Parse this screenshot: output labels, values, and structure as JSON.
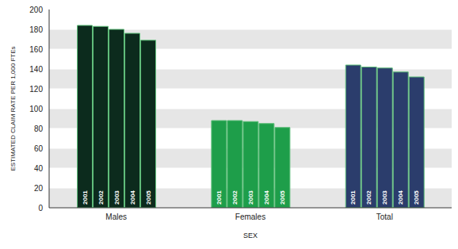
{
  "chart_data": {
    "type": "bar",
    "categories": [
      "Males",
      "Females",
      "Total"
    ],
    "series": [
      {
        "name": "2001",
        "values": [
          184,
          88,
          144
        ]
      },
      {
        "name": "2002",
        "values": [
          183,
          88,
          142
        ]
      },
      {
        "name": "2003",
        "values": [
          180,
          87,
          141
        ]
      },
      {
        "name": "2004",
        "values": [
          176,
          85,
          137
        ]
      },
      {
        "name": "2005",
        "values": [
          169,
          81,
          132
        ]
      }
    ],
    "colors": [
      "#0c2b1d",
      "#1e9e4a",
      "#2b3d6c"
    ],
    "ylim": [
      0,
      200
    ],
    "yticks": [
      0,
      20,
      40,
      60,
      80,
      100,
      120,
      140,
      160,
      180,
      200
    ],
    "xlabel": "SEX",
    "ylabel": "ESTIMATED CLAIM RATE PER 1,000 FTEs",
    "grid": true
  }
}
